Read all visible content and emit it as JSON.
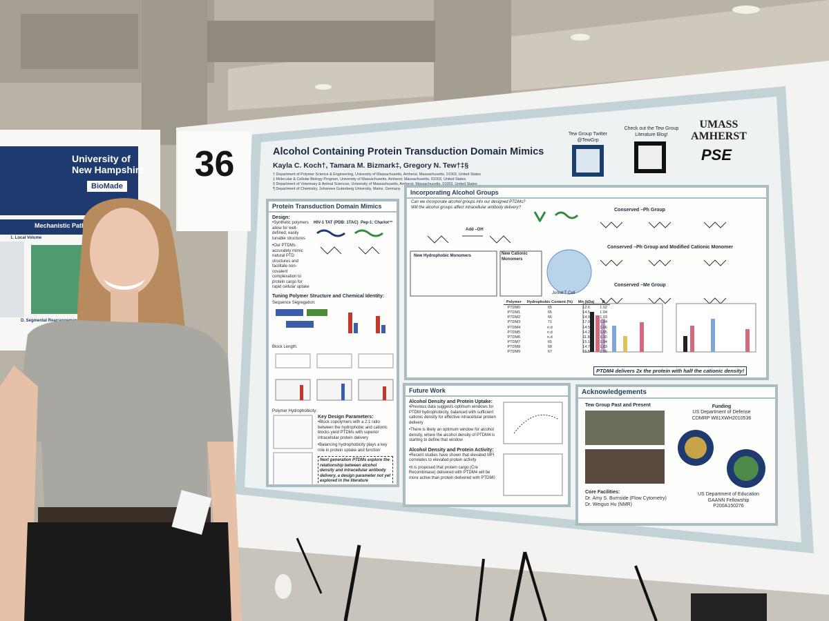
{
  "board_number": "36",
  "poster": {
    "title": "Alcohol Containing Protein Transduction Domain Mimics",
    "authors": "Kayla C. Koch†, Tamara M. Bizmark‡, Gregory N. Tew†‡§",
    "affiliations": [
      "† Department of Polymer Science & Engineering, University of Massachusetts, Amherst, Massachusetts, 01003, United States",
      "‡ Molecular & Cellular Biology Program, University of Massachusetts, Amherst, Massachusetts, 01003, United States",
      "§ Department of Veterinary & Animal Sciences, University of Massachusetts, Amherst, Massachusetts, 01003, United States",
      "¶ Department of Chemistry, Johannes Gutenberg University, Mainz, Germany"
    ],
    "header_links": {
      "twitter_label": "Tew Group Twitter",
      "twitter_handle": "@TewGrp",
      "blog_line1": "Check out the Tew Group",
      "blog_line2": "Literature Blog!"
    },
    "logos": {
      "umass_line1": "UMASS",
      "umass_line2": "AMHERST",
      "pse": "PSE"
    },
    "ptdm_panel": {
      "heading": "Protein Transduction Domain Mimics",
      "design_label": "Design:",
      "design_bullets": [
        "•Synthetic polymers allow for well-defined, easily tunable structures",
        "•Our PTDMs accurately mimic natural PTD structures and facilitate non-covalent complexation to protein cargo for rapid cellular uptake"
      ],
      "tat_label": "HIV-1 TAT (PDB: 1TAC)",
      "pep_label": "Pep-1: Chariot™",
      "tuning_heading": "Tuning Polymer Structure and Chemical Identity:",
      "sequence": "Sequence Segregation:",
      "block": "Block Length:",
      "hydrophobicity": "Polymer Hydrophobicity:",
      "key_heading": "Key Design Parameters:",
      "key_bullets": [
        "•Block copolymers with a 2:1 ratio between the hydrophobic and cationic blocks yield PTDMs with superior intracellular protein delivery",
        "•Balancing hydrophobicity plays a key role in protein uptake and function"
      ],
      "next_gen": "Next generation PTDMs explore the relationship between alcohol density and intracellular antibody delivery, a design parameter not yet explored in the literature"
    },
    "alcohol_panel": {
      "heading": "Incorporating Alcohol Groups",
      "questions": [
        "Can we incorporate alcohol groups into our designed PTDMs?",
        "Will the alcohol groups affect intracellular antibody delivery?"
      ],
      "add_oh": "Add –OH",
      "new_hydrophobic": "New Hydrophobic Monomers",
      "new_cationic": "New Cationic Monomers",
      "jurkat": "Jurkat T Cell",
      "group_labels": [
        "Conserved –Ph Group",
        "Conserved –Ph Group and Modified Cationic Monomer",
        "Conserved –Me Group"
      ],
      "table": {
        "header": [
          "Polymer",
          "Hydrophobic Content (%)",
          "Mn (kDa)",
          "Đ"
        ],
        "rows": [
          [
            "PTDM0",
            "65",
            "12.6",
            "1.02"
          ],
          [
            "PTDM1",
            "65",
            "14.5",
            "1.04"
          ],
          [
            "PTDM2",
            "66",
            "14.9",
            "1.03"
          ],
          [
            "PTDM3",
            "71",
            "17.0",
            "1.04"
          ],
          [
            "PTDM4",
            "n.d",
            "14.5",
            "1.06"
          ],
          [
            "PTDM5",
            "n.d",
            "14.2",
            "1.05"
          ],
          [
            "PTDM6",
            "n.d",
            "11.8",
            "1.10"
          ],
          [
            "PTDM7",
            "65",
            "15.1",
            "1.04"
          ],
          [
            "PTDM8",
            "68",
            "14.7",
            "1.03"
          ],
          [
            "PTDM9",
            "67",
            "15.5",
            "1.06"
          ]
        ]
      },
      "conclusion": "PTDM4 delivers 2x the protein with half the cationic density!"
    },
    "future_panel": {
      "heading": "Future Work",
      "subheading1": "Alcohol Density and Protein Uptake:",
      "bullets1": [
        "•Previous data suggests optimum windows for PTDM hydrophobicity, balanced with sufficient cationic density for effective intracellular protein delivery",
        "•There is likely an optimum window for alcohol density, where the alcohol density of PTDM4 is starting to define that window"
      ],
      "subheading2": "Alcohol Density and Protein Activity:",
      "bullets2": [
        "•Recent studies have shown that elevated MFI correlates to elevated protein activity",
        "•It is proposed that protein cargo (Cre Recombinase) delivered with PTDM4 will be more active than protein delivered with PTDM0"
      ]
    },
    "ack_panel": {
      "heading": "Acknowledgements",
      "group_photo_label": "Tew Group Past and Present",
      "funding_heading": "Funding",
      "funding_lines": [
        "US Department of Defense",
        "CDMRP W81XWH2010536"
      ],
      "core_heading": "Core Facilities:",
      "core_lines": [
        "Dr. Amy S. Burnside (Flow Cytometry)",
        "Dr. Weiguo Hu (NMR)"
      ],
      "education_lines": [
        "US Department of Education",
        "GAANN Fellowship",
        "P200A150276"
      ]
    }
  },
  "neighbor_poster": {
    "university_line1": "University of",
    "university_line2": "New Hampshire",
    "brand": "BioMade",
    "section": "Mechanistic Pathway of",
    "item1": "1. Local Volume",
    "item2": "D. Segmental Rearrangement"
  }
}
